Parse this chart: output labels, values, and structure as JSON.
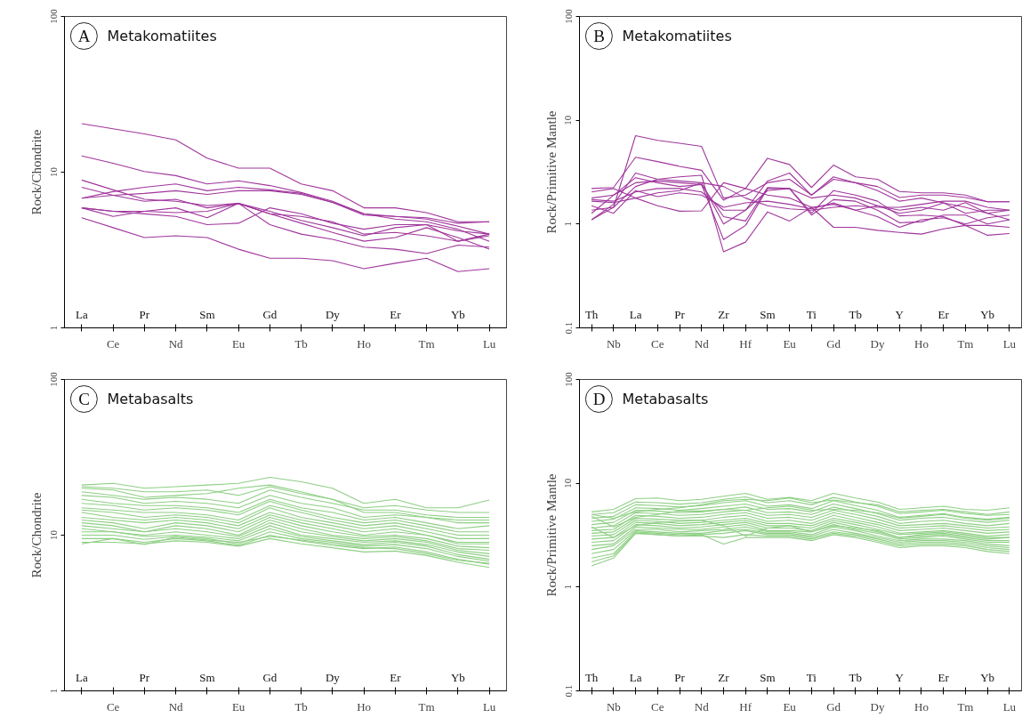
{
  "chart_data": [
    {
      "type": "line",
      "title": "Metakomatiites",
      "annotations": [
        "A"
      ],
      "ylabel": "Rock/Chondrite",
      "log": true,
      "grid": false,
      "ylim": [
        1,
        100
      ],
      "yticks": [
        1,
        10,
        100
      ],
      "categories": [
        "La",
        "Ce",
        "Pr",
        "Nd",
        "Sm",
        "Eu",
        "Gd",
        "Tb",
        "Dy",
        "Ho",
        "Er",
        "Tm",
        "Yb",
        "Lu"
      ],
      "series": [
        {
          "color": "#a0369c",
          "values": [
            20.5,
            19.0,
            17.6,
            16.1,
            12.3,
            10.6,
            10.6,
            8.4,
            7.6,
            5.9,
            5.9,
            5.5,
            4.8,
            4.8
          ]
        },
        {
          "color": "#a0369c",
          "values": [
            12.7,
            11.4,
            10.1,
            9.5,
            8.4,
            8.8,
            8.2,
            7.4,
            6.5,
            5.4,
            5.2,
            5.1,
            4.7,
            4.8
          ]
        },
        {
          "color": "#a0369c",
          "values": [
            8.9,
            7.7,
            6.7,
            6.5,
            6.1,
            6.3,
            5.4,
            5.2,
            4.8,
            4.0,
            4.1,
            3.9,
            3.6,
            4.0
          ]
        },
        {
          "color": "#a0369c",
          "values": [
            8.0,
            7.1,
            6.5,
            6.7,
            5.9,
            6.3,
            5.6,
            4.9,
            4.4,
            3.9,
            4.4,
            4.6,
            4.2,
            4.0
          ]
        },
        {
          "color": "#a0369c",
          "values": [
            6.8,
            7.5,
            8.0,
            8.4,
            7.6,
            8.0,
            7.7,
            7.3,
            6.4,
            5.3,
            5.2,
            5.0,
            4.5,
            4.0
          ]
        },
        {
          "color": "#a0369c",
          "values": [
            6.8,
            7.1,
            7.3,
            7.6,
            7.2,
            7.6,
            7.6,
            7.2,
            6.4,
            5.4,
            5.0,
            4.8,
            4.3,
            3.6
          ]
        },
        {
          "color": "#a0369c",
          "values": [
            5.9,
            5.6,
            5.6,
            5.5,
            5.6,
            6.3,
            5.4,
            4.7,
            4.1,
            3.6,
            3.8,
            4.4,
            3.8,
            3.2
          ]
        },
        {
          "color": "#a0369c",
          "values": [
            5.9,
            5.2,
            5.6,
            5.9,
            5.1,
            6.3,
            4.6,
            4.0,
            3.7,
            3.3,
            3.2,
            3.0,
            3.4,
            3.3
          ]
        },
        {
          "color": "#a0369c",
          "values": [
            5.9,
            5.6,
            5.4,
            5.2,
            4.6,
            4.7,
            5.9,
            5.4,
            4.7,
            4.3,
            4.6,
            4.6,
            3.6,
            3.9
          ]
        },
        {
          "color": "#a0369c",
          "values": [
            5.1,
            4.4,
            3.8,
            3.9,
            3.8,
            3.2,
            2.8,
            2.8,
            2.7,
            2.4,
            2.6,
            2.8,
            2.3,
            2.4
          ]
        }
      ]
    },
    {
      "type": "line",
      "title": "Metakomatiites",
      "annotations": [
        "B"
      ],
      "ylabel": "Rock/Primitive Mantle",
      "log": true,
      "grid": false,
      "ylim": [
        0.1,
        100
      ],
      "yticks": [
        0.1,
        1,
        10,
        100
      ],
      "categories": [
        "Th",
        "Nb",
        "La",
        "Ce",
        "Pr",
        "Nd",
        "Zr",
        "Hf",
        "Sm",
        "Eu",
        "Ti",
        "Gd",
        "Tb",
        "Dy",
        "Y",
        "Ho",
        "Er",
        "Tm",
        "Yb",
        "Lu"
      ],
      "series": [
        {
          "color": "#a0369c",
          "values": [
            1.36,
            1.45,
            7.1,
            6.4,
            6.0,
            5.6,
            1.78,
            1.9,
            2.5,
            2.7,
            1.9,
            2.7,
            2.5,
            2.3,
            1.8,
            1.9,
            1.9,
            1.8,
            1.64,
            1.64
          ]
        },
        {
          "color": "#a0369c",
          "values": [
            2.2,
            2.25,
            4.4,
            4.0,
            3.6,
            3.3,
            1.7,
            2.2,
            4.3,
            3.75,
            2.25,
            3.7,
            2.85,
            2.7,
            2.06,
            2.0,
            2.0,
            1.9,
            1.64,
            1.64
          ]
        },
        {
          "color": "#a0369c",
          "values": [
            1.1,
            1.55,
            3.1,
            2.7,
            2.6,
            2.5,
            1.0,
            1.36,
            2.6,
            3.1,
            1.9,
            2.85,
            2.5,
            2.1,
            1.66,
            1.78,
            1.6,
            1.45,
            1.27,
            1.36
          ]
        },
        {
          "color": "#a0369c",
          "values": [
            1.78,
            1.9,
            2.8,
            2.5,
            2.3,
            2.4,
            0.71,
            0.97,
            2.2,
            2.2,
            1.27,
            2.1,
            1.9,
            1.66,
            1.2,
            1.22,
            1.18,
            0.97,
            0.97,
            0.93
          ]
        },
        {
          "color": "#a0369c",
          "values": [
            1.1,
            1.45,
            2.3,
            2.7,
            2.85,
            2.95,
            0.54,
            0.67,
            1.31,
            1.07,
            1.45,
            0.93,
            0.93,
            0.87,
            0.83,
            0.8,
            0.9,
            0.97,
            0.78,
            0.81
          ]
        },
        {
          "color": "#a0369c",
          "values": [
            1.66,
            1.61,
            1.78,
            1.5,
            1.33,
            1.34,
            2.5,
            2.2,
            1.9,
            1.78,
            1.45,
            1.55,
            1.36,
            1.18,
            0.93,
            1.1,
            1.15,
            1.0,
            1.15,
            1.22
          ]
        },
        {
          "color": "#a0369c",
          "values": [
            1.72,
            1.66,
            2.04,
            2.2,
            2.2,
            2.04,
            1.36,
            1.36,
            2.1,
            2.2,
            1.78,
            1.9,
            1.78,
            1.5,
            1.36,
            1.45,
            1.36,
            1.61,
            1.27,
            1.1
          ]
        },
        {
          "color": "#a0369c",
          "values": [
            1.5,
            1.27,
            2.1,
            1.84,
            2.0,
            1.9,
            1.45,
            1.6,
            1.66,
            1.55,
            1.4,
            1.6,
            1.36,
            1.5,
            1.27,
            1.36,
            1.6,
            1.27,
            1.36,
            1.36
          ]
        },
        {
          "color": "#a0369c",
          "values": [
            1.27,
            1.9,
            2.5,
            2.6,
            2.5,
            2.4,
            1.18,
            1.07,
            2.25,
            2.2,
            1.22,
            1.72,
            1.66,
            1.36,
            1.03,
            1.05,
            1.22,
            1.22,
            1.0,
            1.1
          ]
        },
        {
          "color": "#a0369c",
          "values": [
            2.04,
            2.2,
            1.78,
            2.0,
            2.1,
            2.5,
            2.3,
            1.78,
            1.5,
            1.4,
            1.36,
            1.45,
            1.5,
            1.45,
            1.45,
            1.55,
            1.66,
            1.66,
            1.45,
            1.36
          ]
        }
      ]
    },
    {
      "type": "line",
      "title": "Metabasalts",
      "annotations": [
        "C"
      ],
      "ylabel": "Rock/Chondrite",
      "log": true,
      "grid": false,
      "ylim": [
        1,
        100
      ],
      "yticks": [
        1,
        10,
        100
      ],
      "categories": [
        "La",
        "Ce",
        "Pr",
        "Nd",
        "Sm",
        "Eu",
        "Gd",
        "Tb",
        "Dy",
        "Ho",
        "Er",
        "Tm",
        "Yb",
        "Lu"
      ],
      "series": [
        {
          "color": "#8ecf84",
          "values": [
            21,
            21.5,
            20,
            20.5,
            21,
            21.5,
            23.5,
            22,
            20,
            16,
            17,
            15,
            15,
            16.8
          ]
        },
        {
          "color": "#8ecf84",
          "values": [
            20,
            19.5,
            17.5,
            18,
            18.5,
            20,
            21,
            19,
            17,
            15,
            15.5,
            14.5,
            14,
            14
          ]
        },
        {
          "color": "#8ecf84",
          "values": [
            19,
            18,
            17,
            17.5,
            17,
            16,
            19.5,
            17.5,
            16,
            14.5,
            14.5,
            13.5,
            13,
            13
          ]
        },
        {
          "color": "#8ecf84",
          "values": [
            18,
            17.5,
            16,
            16.5,
            16,
            15,
            18,
            16,
            15,
            13,
            13.5,
            13,
            12,
            12
          ]
        },
        {
          "color": "#8ecf84",
          "values": [
            17,
            16,
            15.5,
            15.5,
            15,
            14,
            17,
            15,
            14,
            12.5,
            13,
            12,
            11,
            11.5
          ]
        },
        {
          "color": "#8ecf84",
          "values": [
            16,
            15.5,
            14.5,
            15,
            14.5,
            13.5,
            16.5,
            14.5,
            13,
            12,
            12.5,
            11.5,
            10.5,
            10.5
          ]
        },
        {
          "color": "#8ecf84",
          "values": [
            15,
            14.5,
            14,
            14,
            13.5,
            12.5,
            15.5,
            14,
            12.5,
            11.5,
            12,
            11,
            10,
            10
          ]
        },
        {
          "color": "#8ecf84",
          "values": [
            14.5,
            14,
            13,
            13.5,
            13,
            12,
            15,
            13,
            12,
            11,
            11.5,
            10.5,
            9.5,
            9.5
          ]
        },
        {
          "color": "#8ecf84",
          "values": [
            14,
            13,
            12.5,
            13,
            12.5,
            11.5,
            14,
            12.5,
            11.5,
            10.5,
            11,
            10,
            9,
            9
          ]
        },
        {
          "color": "#8ecf84",
          "values": [
            13,
            12.5,
            12,
            12.5,
            12,
            11,
            13.5,
            12,
            11,
            10,
            10.5,
            10,
            8.8,
            8.8
          ]
        },
        {
          "color": "#8ecf84",
          "values": [
            12.5,
            12,
            11,
            12,
            11.5,
            10.5,
            13,
            11.5,
            10.5,
            9.8,
            10,
            9.5,
            8.5,
            8.3
          ]
        },
        {
          "color": "#8ecf84",
          "values": [
            12,
            11.5,
            10.5,
            11.5,
            11,
            10,
            12.5,
            11,
            10,
            9.5,
            9.8,
            9.2,
            8.2,
            8
          ]
        },
        {
          "color": "#8ecf84",
          "values": [
            11.5,
            11,
            10.5,
            11,
            10.5,
            9.8,
            12,
            10.5,
            9.8,
            9.2,
            9.5,
            9,
            8,
            7.6
          ]
        },
        {
          "color": "#8ecf84",
          "values": [
            11,
            10.5,
            10,
            10.5,
            10,
            9.5,
            11.5,
            10,
            9.5,
            9,
            9.2,
            8.7,
            7.8,
            7.3
          ]
        },
        {
          "color": "#8ecf84",
          "values": [
            10.5,
            10.5,
            9.8,
            10,
            9.7,
            9.2,
            11,
            9.8,
            9.2,
            8.7,
            9,
            8.5,
            7.5,
            7
          ]
        },
        {
          "color": "#8ecf84",
          "values": [
            10,
            10,
            9.4,
            9.8,
            9.5,
            8.8,
            10.5,
            9.5,
            9,
            8.5,
            8.7,
            8.2,
            7.3,
            6.8
          ]
        },
        {
          "color": "#8ecf84",
          "values": [
            9.5,
            9.5,
            9,
            9.5,
            9.2,
            8.6,
            10,
            9.2,
            8.6,
            8.2,
            8.4,
            7.8,
            7,
            6.5
          ]
        },
        {
          "color": "#8ecf84",
          "values": [
            9,
            9,
            8.8,
            9.2,
            9,
            8.5,
            9.5,
            8.8,
            8.3,
            7.8,
            7.9,
            7.4,
            6.7,
            6.2
          ]
        },
        {
          "color": "#8ecf84",
          "values": [
            8.8,
            9.5,
            8.7,
            9.7,
            9.3,
            9,
            9.8,
            9.3,
            8.8,
            8.3,
            8.2,
            7.6,
            6.9,
            6.6
          ]
        },
        {
          "color": "#8ecf84",
          "values": [
            20.5,
            20,
            19,
            19,
            19.5,
            18,
            20.5,
            18.5,
            17,
            14,
            14,
            13,
            12.5,
            12.5
          ]
        }
      ]
    },
    {
      "type": "line",
      "title": "Metabasalts",
      "annotations": [
        "D"
      ],
      "ylabel": "Rock/Primitive Mantle",
      "log": true,
      "grid": false,
      "ylim": [
        0.1,
        100
      ],
      "yticks": [
        0.1,
        1,
        10,
        100
      ],
      "categories": [
        "Th",
        "Nb",
        "La",
        "Ce",
        "Pr",
        "Nd",
        "Zr",
        "Hf",
        "Sm",
        "Eu",
        "Ti",
        "Gd",
        "Tb",
        "Dy",
        "Y",
        "Ho",
        "Er",
        "Tm",
        "Yb",
        "Lu"
      ],
      "series": [
        {
          "color": "#8ecf84",
          "values": [
            5.3,
            5.6,
            7.1,
            7.2,
            6.8,
            7.0,
            7.5,
            8.0,
            7.0,
            7.3,
            6.8,
            8.0,
            7.2,
            6.6,
            5.6,
            5.8,
            6.0,
            5.6,
            5.5,
            5.8
          ]
        },
        {
          "color": "#8ecf84",
          "values": [
            5.0,
            5.2,
            6.6,
            6.5,
            6.3,
            6.5,
            7.0,
            7.4,
            6.5,
            6.8,
            6.2,
            7.3,
            6.6,
            6.0,
            5.1,
            5.3,
            5.5,
            5.1,
            4.9,
            5.0
          ]
        },
        {
          "color": "#8ecf84",
          "values": [
            4.6,
            4.8,
            6.2,
            6.1,
            5.9,
            6.1,
            6.5,
            6.8,
            6.0,
            6.2,
            5.7,
            6.8,
            6.1,
            5.5,
            4.7,
            4.9,
            5.1,
            4.7,
            4.5,
            4.7
          ]
        },
        {
          "color": "#8ecf84",
          "values": [
            4.3,
            4.5,
            5.8,
            5.7,
            5.5,
            5.7,
            6.0,
            6.3,
            5.6,
            5.7,
            5.3,
            6.3,
            5.7,
            5.1,
            4.4,
            4.6,
            4.7,
            4.4,
            4.2,
            4.4
          ]
        },
        {
          "color": "#8ecf84",
          "values": [
            4.0,
            4.2,
            5.5,
            5.4,
            5.2,
            5.3,
            5.6,
            5.9,
            5.2,
            5.3,
            5.0,
            5.9,
            5.3,
            4.8,
            4.1,
            4.3,
            4.4,
            4.1,
            3.9,
            4.1
          ]
        },
        {
          "color": "#8ecf84",
          "values": [
            3.7,
            3.9,
            5.2,
            5.1,
            4.9,
            5.0,
            5.3,
            5.5,
            4.9,
            5.0,
            4.7,
            5.5,
            5.0,
            4.5,
            3.9,
            4.0,
            4.1,
            3.9,
            3.7,
            3.8
          ]
        },
        {
          "color": "#8ecf84",
          "values": [
            3.5,
            3.6,
            4.9,
            4.8,
            4.6,
            4.7,
            5.0,
            5.2,
            4.6,
            4.7,
            4.4,
            5.2,
            4.7,
            4.2,
            3.7,
            3.8,
            3.9,
            3.7,
            3.5,
            3.6
          ]
        },
        {
          "color": "#8ecf84",
          "values": [
            3.3,
            3.4,
            4.6,
            4.5,
            4.4,
            4.4,
            4.7,
            4.9,
            4.3,
            4.4,
            4.1,
            4.9,
            4.4,
            4.0,
            3.5,
            3.6,
            3.7,
            3.5,
            3.3,
            3.4
          ]
        },
        {
          "color": "#8ecf84",
          "values": [
            3.1,
            3.2,
            4.4,
            4.3,
            4.1,
            4.2,
            4.4,
            4.6,
            4.1,
            4.1,
            3.9,
            4.6,
            4.2,
            3.8,
            3.3,
            3.4,
            3.5,
            3.3,
            3.1,
            3.2
          ]
        },
        {
          "color": "#8ecf84",
          "values": [
            2.9,
            3.0,
            4.2,
            4.1,
            3.9,
            4.0,
            4.2,
            4.4,
            3.9,
            3.9,
            3.7,
            4.4,
            4.0,
            3.6,
            3.2,
            3.3,
            3.4,
            3.2,
            3.0,
            3.0
          ]
        },
        {
          "color": "#8ecf84",
          "values": [
            2.7,
            2.8,
            4.0,
            3.9,
            3.7,
            3.8,
            4.0,
            4.2,
            3.7,
            3.7,
            3.5,
            4.2,
            3.8,
            3.4,
            3.0,
            3.1,
            3.2,
            3.0,
            2.8,
            2.8
          ]
        },
        {
          "color": "#8ecf84",
          "values": [
            2.5,
            2.6,
            3.8,
            3.7,
            3.6,
            3.6,
            3.8,
            4.0,
            3.5,
            3.5,
            3.4,
            4.0,
            3.6,
            3.3,
            2.9,
            3.0,
            3.1,
            2.9,
            2.7,
            2.7
          ]
        },
        {
          "color": "#8ecf84",
          "values": [
            2.3,
            2.5,
            3.6,
            3.6,
            3.4,
            3.5,
            3.6,
            3.8,
            3.4,
            3.4,
            3.2,
            3.8,
            3.5,
            3.1,
            2.8,
            2.9,
            2.9,
            2.8,
            2.6,
            2.5
          ]
        },
        {
          "color": "#8ecf84",
          "values": [
            2.1,
            2.3,
            3.5,
            3.4,
            3.3,
            3.3,
            3.5,
            3.6,
            3.3,
            3.3,
            3.1,
            3.6,
            3.3,
            3.0,
            2.7,
            2.8,
            2.8,
            2.7,
            2.5,
            2.4
          ]
        },
        {
          "color": "#8ecf84",
          "values": [
            1.9,
            2.1,
            3.4,
            3.3,
            3.2,
            3.2,
            3.3,
            3.5,
            3.2,
            3.2,
            3.0,
            3.4,
            3.2,
            2.9,
            2.6,
            2.7,
            2.7,
            2.6,
            2.4,
            2.3
          ]
        },
        {
          "color": "#8ecf84",
          "values": [
            1.75,
            2.0,
            3.3,
            3.2,
            3.1,
            3.1,
            3.0,
            3.2,
            3.1,
            3.1,
            2.9,
            3.3,
            3.1,
            2.8,
            2.5,
            2.6,
            2.6,
            2.5,
            2.3,
            2.2
          ]
        },
        {
          "color": "#8ecf84",
          "values": [
            1.6,
            1.9,
            3.3,
            3.2,
            3.1,
            3.2,
            2.6,
            3.0,
            3.0,
            3.0,
            2.8,
            3.2,
            3.0,
            2.7,
            2.4,
            2.5,
            2.5,
            2.4,
            2.2,
            2.1
          ]
        },
        {
          "color": "#8ecf84",
          "values": [
            5.0,
            4.6,
            5.3,
            5.6,
            5.8,
            6.2,
            6.8,
            7.0,
            6.8,
            7.2,
            6.5,
            6.9,
            6.5,
            6.2,
            5.3,
            5.5,
            5.6,
            5.3,
            5.0,
            5.3
          ]
        },
        {
          "color": "#8ecf84",
          "values": [
            4.8,
            3.8,
            4.7,
            5.0,
            5.4,
            5.4,
            5.6,
            5.5,
            5.8,
            6.0,
            5.5,
            5.6,
            5.5,
            5.2,
            4.6,
            4.8,
            5.0,
            4.6,
            4.4,
            4.6
          ]
        },
        {
          "color": "#8ecf84",
          "values": [
            3.8,
            3.0,
            3.9,
            4.2,
            4.3,
            4.4,
            3.9,
            3.1,
            3.7,
            3.9,
            3.4,
            3.9,
            3.7,
            3.5,
            3.0,
            3.2,
            3.3,
            3.1,
            2.9,
            3.0
          ]
        }
      ]
    }
  ]
}
